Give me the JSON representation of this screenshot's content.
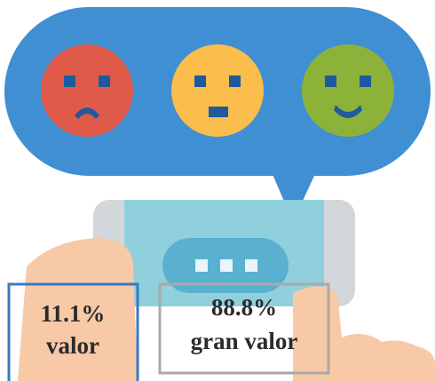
{
  "labels": [
    {
      "percent": "11.1%",
      "text": "valor"
    },
    {
      "percent": "88.8%",
      "text": "gran valor"
    }
  ]
}
